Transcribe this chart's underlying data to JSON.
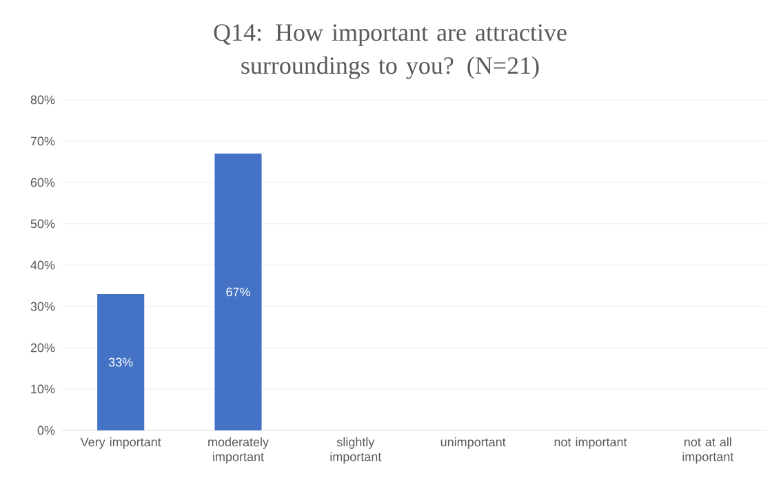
{
  "chart_data": {
    "type": "bar",
    "title": "Q14: How important are attractive surroundings to you? (N=21)",
    "categories": [
      "Very important",
      "moderately important",
      "slightly important",
      "unimportant",
      "not important",
      "not at all important"
    ],
    "values": [
      33,
      67,
      0,
      0,
      0,
      0
    ],
    "value_labels": [
      "33%",
      "67%",
      null,
      null,
      null,
      null
    ],
    "color": "#4472c4",
    "ylim": [
      0,
      80
    ],
    "yticks": [
      {
        "value": 0,
        "label": "0%"
      },
      {
        "value": 10,
        "label": "10%"
      },
      {
        "value": 20,
        "label": "20%"
      },
      {
        "value": 30,
        "label": "30%"
      },
      {
        "value": 40,
        "label": "40%"
      },
      {
        "value": 50,
        "label": "50%"
      },
      {
        "value": 60,
        "label": "60%"
      },
      {
        "value": 70,
        "label": "70%"
      },
      {
        "value": 80,
        "label": "80%"
      }
    ],
    "grid": "y"
  }
}
